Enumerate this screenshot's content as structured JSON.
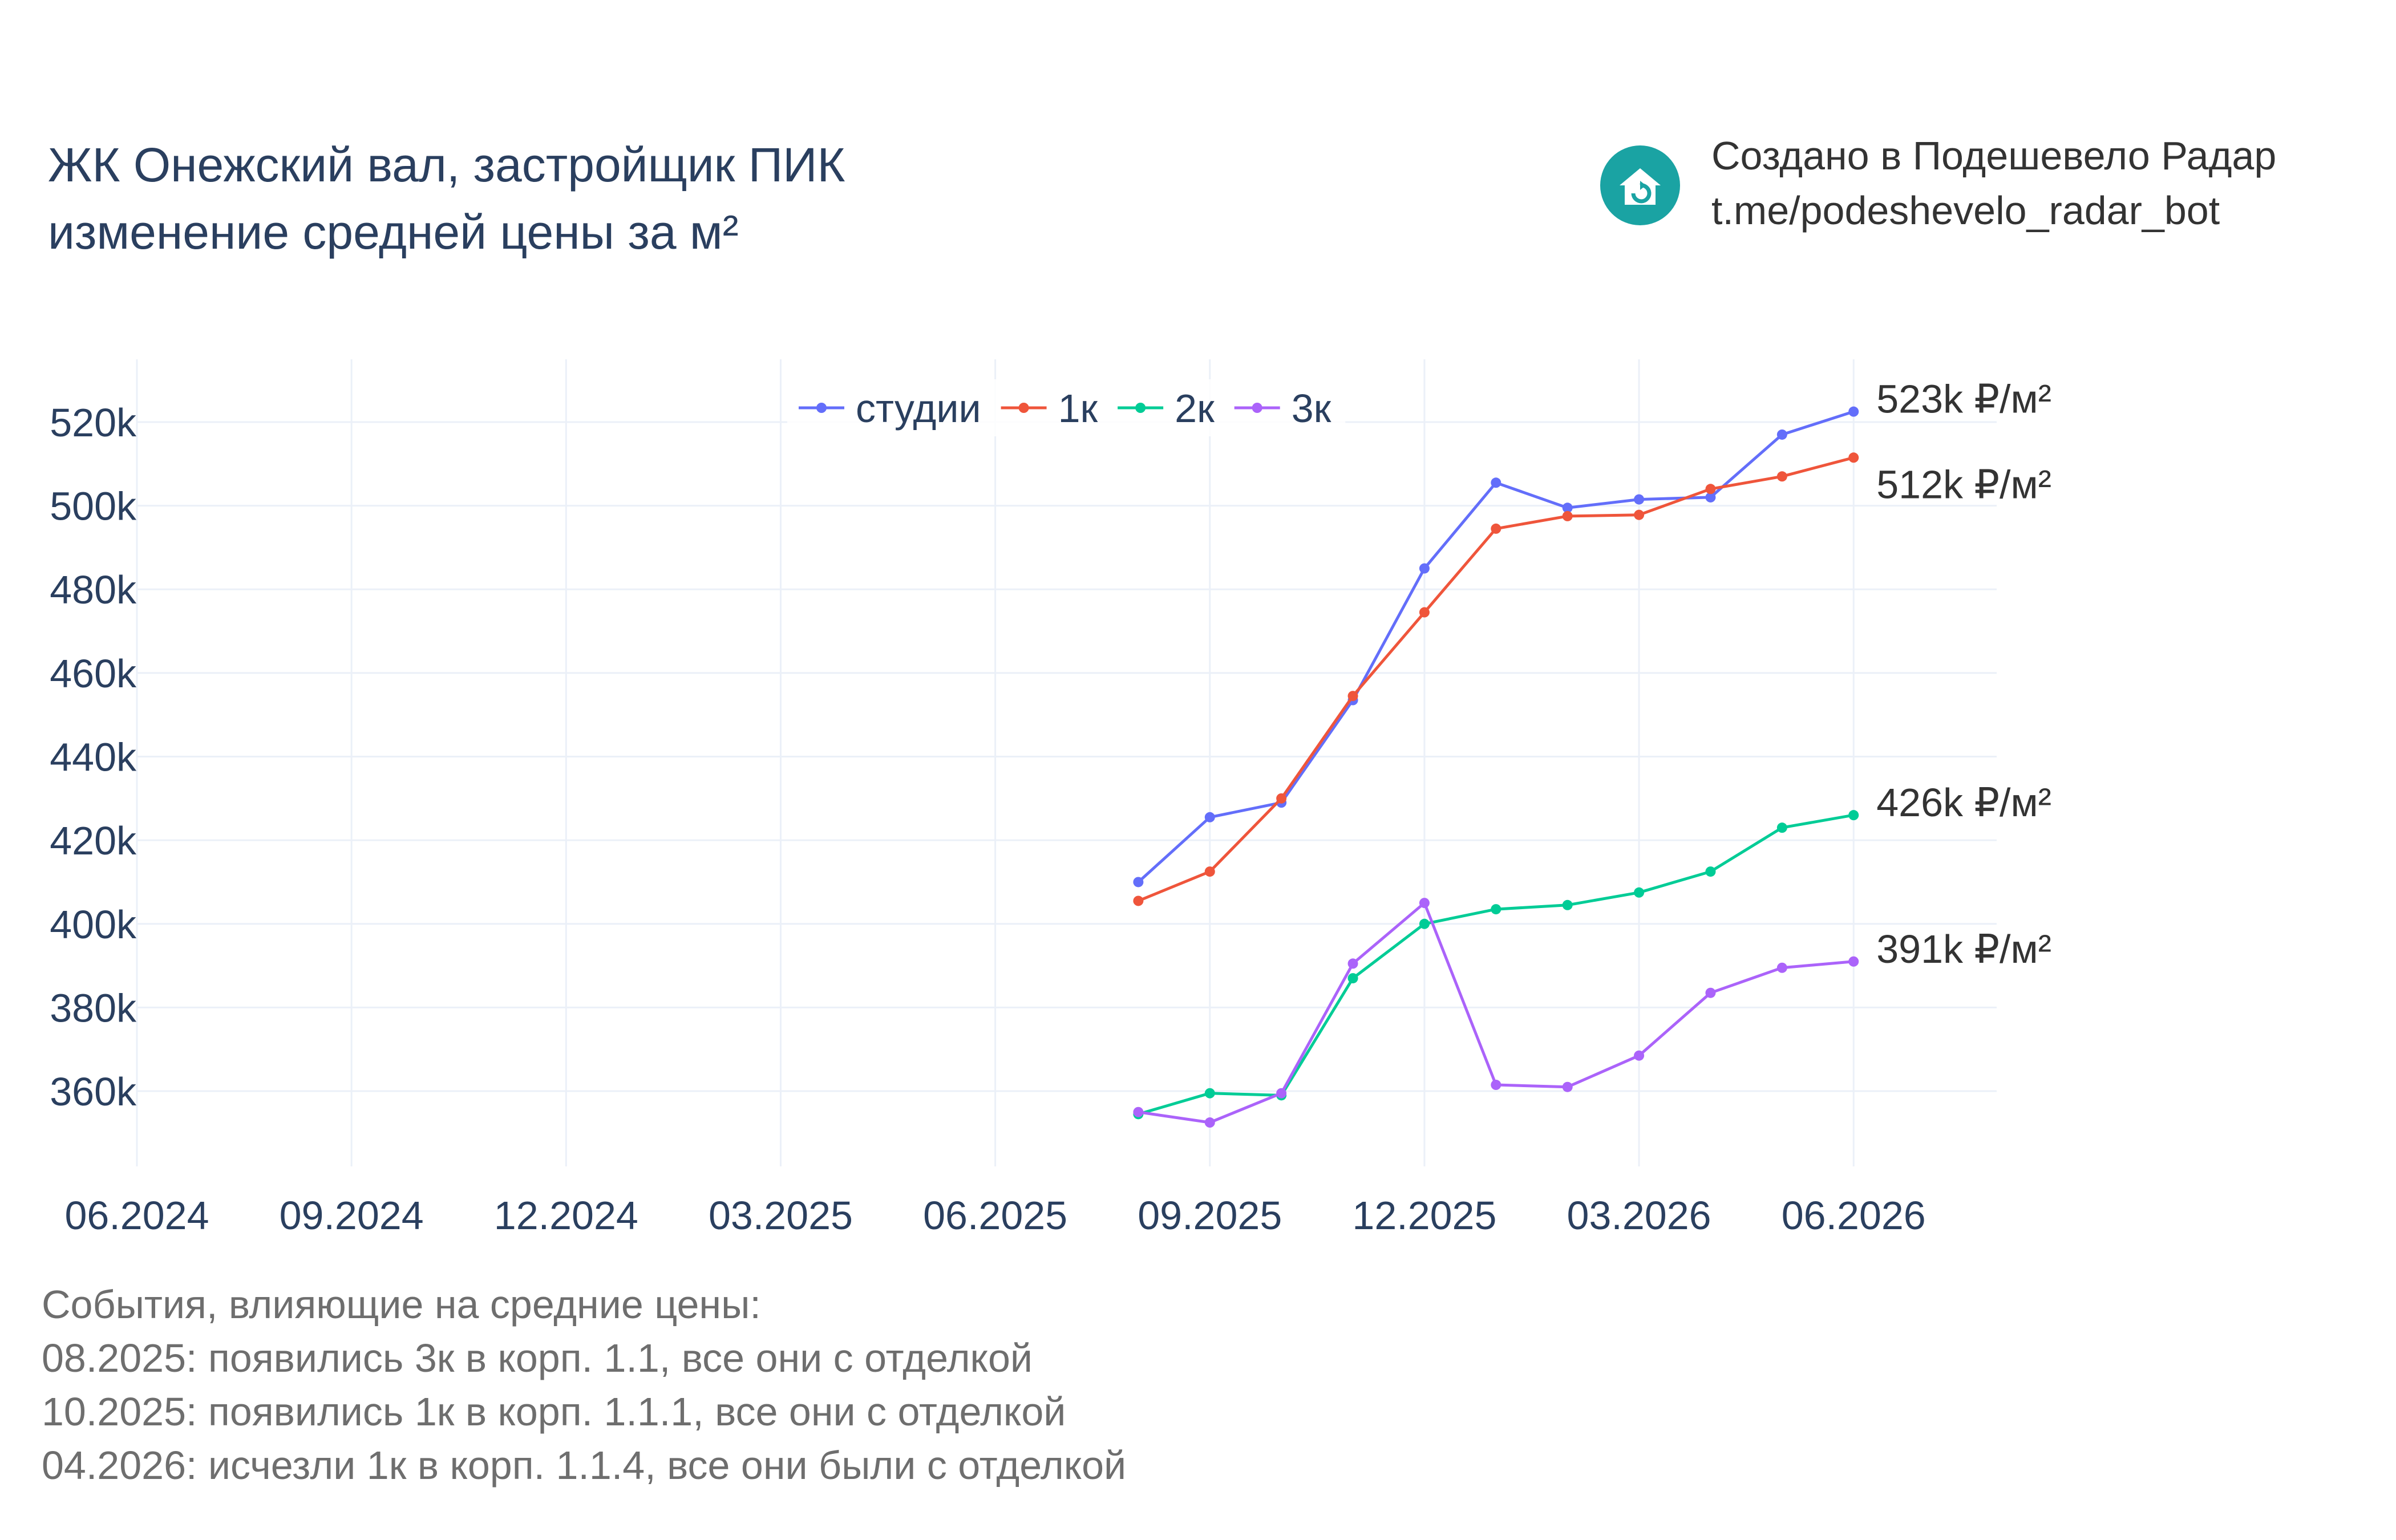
{
  "header": {
    "title_line1": "ЖК Онежский вал, застройщик ПИК",
    "title_line2": "изменение средней цены за м²"
  },
  "brand": {
    "icon": "house-refresh-icon",
    "color": "#1aa3a3",
    "line1": "Создано в Подешевело Радар",
    "line2": "t.me/podeshevelo_radar_bot"
  },
  "events": {
    "heading": "События, влияющие на средние цены:",
    "items": [
      "08.2025: появились 3к в корп. 1.1, все они с отделкой",
      "10.2025: появились 1к в корп. 1.1.1, все они с отделкой",
      "04.2026: исчезли 1к в корп. 1.1.4, все они были с отделкой"
    ]
  },
  "chart_data": {
    "type": "line",
    "title": "ЖК Онежский вал, застройщик ПИК изменение средней цены за м²",
    "xlabel": "",
    "ylabel": "",
    "x_unit": "month",
    "x_range": [
      "2024-06",
      "2026-08"
    ],
    "x_ticks": [
      "06.2024",
      "09.2024",
      "12.2024",
      "03.2025",
      "06.2025",
      "09.2025",
      "12.2025",
      "03.2026",
      "06.2026"
    ],
    "x_tick_dates": [
      "2024-06",
      "2024-09",
      "2024-12",
      "2025-03",
      "2025-06",
      "2025-09",
      "2025-12",
      "2026-03",
      "2026-06"
    ],
    "ylim": [
      342000,
      535000
    ],
    "y_ticks": [
      360000,
      380000,
      400000,
      420000,
      440000,
      460000,
      480000,
      500000,
      520000
    ],
    "y_tick_labels": [
      "360k",
      "380k",
      "400k",
      "420k",
      "440k",
      "460k",
      "480k",
      "500k",
      "520k"
    ],
    "grid": true,
    "legend_position": "top-center",
    "x": [
      "2025-08",
      "2025-09",
      "2025-10",
      "2025-11",
      "2025-12",
      "2026-01",
      "2026-02",
      "2026-03",
      "2026-04",
      "2026-05",
      "2026-06"
    ],
    "series": [
      {
        "name": "студии",
        "color": "#636efa",
        "values": [
          410000,
          425500,
          429000,
          453500,
          485000,
          505500,
          499500,
          501500,
          502000,
          517000,
          522500
        ],
        "end_label": "523k ₽/м²"
      },
      {
        "name": "1к",
        "color": "#ef553b",
        "values": [
          405500,
          412500,
          430000,
          454500,
          474500,
          494500,
          497500,
          497800,
          504000,
          507000,
          511500
        ],
        "end_label": "512k ₽/м²"
      },
      {
        "name": "2к",
        "color": "#00cc96",
        "values": [
          354500,
          359500,
          359000,
          387000,
          400000,
          403500,
          404500,
          407500,
          412500,
          423000,
          426000
        ],
        "end_label": "426k ₽/м²"
      },
      {
        "name": "3к",
        "color": "#ab63fa",
        "values": [
          355000,
          352500,
          359500,
          390500,
          405000,
          361500,
          361000,
          368500,
          383500,
          389500,
          391000
        ],
        "end_label": "391k ₽/м²"
      }
    ]
  }
}
